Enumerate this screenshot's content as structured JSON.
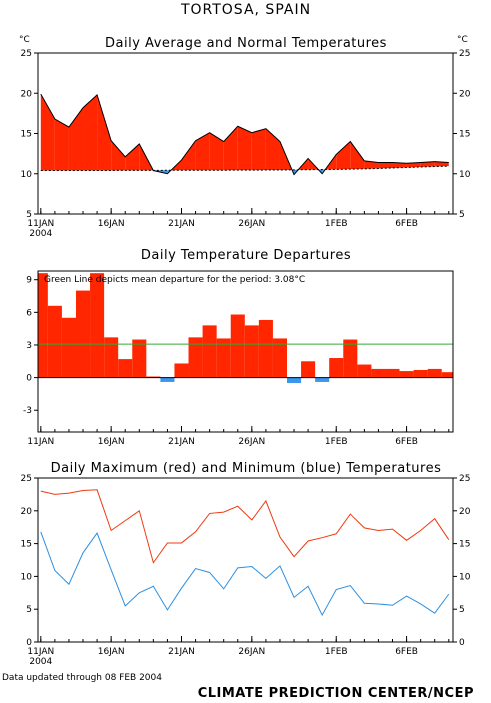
{
  "title": "TORTOSA, SPAIN",
  "footer_left": "Data updated through 08 FEB 2004",
  "footer_right": "CLIMATE PREDICTION CENTER/NCEP",
  "colors": {
    "warm": "#ff2600",
    "cool": "#3c96ee",
    "mean_line": "#33aa33",
    "max_line": "#ee3a10",
    "min_line": "#2c8ee0"
  },
  "chart_data": [
    {
      "type": "area",
      "title": "Daily Average and Normal Temperatures",
      "unit_left": "°C",
      "unit_right": "°C",
      "x_ticks": [
        {
          "day": 1,
          "label": "11JAN",
          "sub": "2004"
        },
        {
          "day": 6,
          "label": "16JAN"
        },
        {
          "day": 11,
          "label": "21JAN"
        },
        {
          "day": 16,
          "label": "26JAN"
        },
        {
          "day": 22,
          "label": "1FEB"
        },
        {
          "day": 27,
          "label": "6FEB"
        }
      ],
      "y_ticks": [
        5,
        10,
        15,
        20,
        25
      ],
      "ylim": [
        5,
        25
      ],
      "xlim": [
        0.8,
        30.3
      ],
      "days": [
        1,
        2,
        3,
        4,
        5,
        6,
        7,
        8,
        9,
        10,
        11,
        12,
        13,
        14,
        15,
        16,
        17,
        18,
        19,
        20,
        21,
        22,
        23,
        24,
        25,
        26,
        27,
        28,
        29,
        30
      ],
      "series": [
        {
          "name": "average",
          "values": [
            19.9,
            16.8,
            15.8,
            18.2,
            19.8,
            14.1,
            12.1,
            13.7,
            10.4,
            10.0,
            11.7,
            14.1,
            15.1,
            14.0,
            15.9,
            15.1,
            15.6,
            14.0,
            9.9,
            11.9,
            10.0,
            12.4,
            14.0,
            11.6,
            11.4,
            11.4,
            11.3,
            11.4,
            11.5,
            11.4
          ]
        },
        {
          "name": "normal",
          "values": [
            10.4,
            10.4,
            10.4,
            10.41,
            10.41,
            10.41,
            10.42,
            10.42,
            10.42,
            10.43,
            10.43,
            10.43,
            10.44,
            10.44,
            10.45,
            10.45,
            10.46,
            10.47,
            10.48,
            10.5,
            10.52,
            10.54,
            10.57,
            10.61,
            10.66,
            10.72,
            10.78,
            10.84,
            10.9,
            10.95
          ]
        }
      ]
    },
    {
      "type": "bar",
      "title": "Daily Temperature Departures",
      "annotation": "Green Line depicts mean departure for the period: 3.08°C",
      "mean_departure": 3.08,
      "x_ticks": [
        {
          "day": 1,
          "label": "11JAN"
        },
        {
          "day": 6,
          "label": "16JAN"
        },
        {
          "day": 11,
          "label": "21JAN"
        },
        {
          "day": 16,
          "label": "26JAN"
        },
        {
          "day": 22,
          "label": "1FEB"
        },
        {
          "day": 27,
          "label": "6FEB"
        }
      ],
      "y_ticks": [
        -3,
        0,
        3,
        6,
        9
      ],
      "ylim": [
        -5,
        9.8
      ],
      "xlim": [
        0.8,
        30.3
      ],
      "days": [
        1,
        2,
        3,
        4,
        5,
        6,
        7,
        8,
        9,
        10,
        11,
        12,
        13,
        14,
        15,
        16,
        17,
        18,
        19,
        20,
        21,
        22,
        23,
        24,
        25,
        26,
        27,
        28,
        29,
        30
      ],
      "values": [
        9.6,
        6.6,
        5.5,
        8.0,
        9.6,
        3.7,
        1.7,
        3.5,
        0.1,
        -0.4,
        1.3,
        3.7,
        4.8,
        3.6,
        5.8,
        4.8,
        5.3,
        3.6,
        -0.5,
        1.5,
        -0.4,
        1.8,
        3.5,
        1.2,
        0.8,
        0.8,
        0.6,
        0.7,
        0.8,
        0.5
      ]
    },
    {
      "type": "line",
      "title": "Daily Maximum (red) and Minimum (blue) Temperatures",
      "x_ticks": [
        {
          "day": 1,
          "label": "11JAN",
          "sub": "2004"
        },
        {
          "day": 6,
          "label": "16JAN"
        },
        {
          "day": 11,
          "label": "21JAN"
        },
        {
          "day": 16,
          "label": "26JAN"
        },
        {
          "day": 22,
          "label": "1FEB"
        },
        {
          "day": 27,
          "label": "6FEB"
        }
      ],
      "y_ticks": [
        0,
        5,
        10,
        15,
        20,
        25
      ],
      "ylim": [
        0,
        25
      ],
      "xlim": [
        0.8,
        30.3
      ],
      "days": [
        1,
        2,
        3,
        4,
        5,
        6,
        7,
        8,
        9,
        10,
        11,
        12,
        13,
        14,
        15,
        16,
        17,
        18,
        19,
        20,
        21,
        22,
        23,
        24,
        25,
        26,
        27,
        28,
        29,
        30
      ],
      "series": [
        {
          "name": "maximum",
          "values": [
            23.0,
            22.5,
            22.7,
            23.1,
            23.2,
            17.0,
            18.5,
            20.0,
            12.1,
            15.1,
            15.1,
            16.8,
            19.6,
            19.8,
            20.7,
            18.6,
            21.5,
            16.0,
            13.0,
            15.4,
            15.9,
            16.5,
            19.5,
            17.4,
            17.0,
            17.2,
            15.5,
            17.0,
            18.8,
            15.6
          ]
        },
        {
          "name": "minimum",
          "values": [
            16.8,
            10.9,
            8.8,
            13.6,
            16.6,
            11.0,
            5.5,
            7.5,
            8.5,
            4.9,
            8.2,
            11.2,
            10.6,
            8.1,
            11.3,
            11.5,
            9.7,
            11.6,
            6.8,
            8.5,
            4.1,
            8.0,
            8.6,
            5.9,
            5.8,
            5.6,
            7.0,
            5.8,
            4.4,
            7.3
          ]
        }
      ]
    }
  ]
}
